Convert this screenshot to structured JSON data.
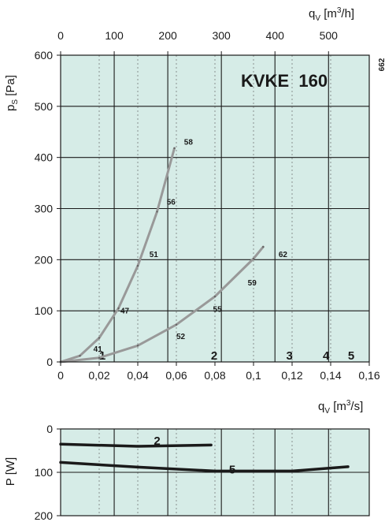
{
  "chart_data": [
    {
      "type": "line",
      "title": "KVKE  160",
      "side_label": "662",
      "ylabel_main": "p",
      "ylabel_sub": "S",
      "ylabel_unit": "[Pa]",
      "xlabel_main": "q",
      "xlabel_sub": "V",
      "xlabel_unit_pre": "[m",
      "xlabel_unit_sup": "3",
      "xlabel_unit_post": "/s]",
      "top_xlabel_main": "q",
      "top_xlabel_sub": "V",
      "top_xlabel_unit_pre": "[m",
      "top_xlabel_unit_sup": "3",
      "top_xlabel_unit_post": "/h]",
      "xlim": [
        0,
        0.16
      ],
      "ylim": [
        0,
        600
      ],
      "x_ticks": [
        0,
        0.02,
        0.04,
        0.06,
        0.08,
        0.1,
        0.12,
        0.14,
        0.16
      ],
      "x_tick_labels": [
        "0",
        "0,02",
        "0,04",
        "0,06",
        "0,08",
        "0,1",
        "0,12",
        "0,14",
        "0,16"
      ],
      "y_ticks": [
        0,
        100,
        200,
        300,
        400,
        500,
        600
      ],
      "y_tick_labels": [
        "0",
        "100",
        "200",
        "300",
        "400",
        "500",
        "600"
      ],
      "top_x_ticks_m3h": [
        0,
        100,
        200,
        300,
        400,
        500
      ],
      "top_x_tick_labels": [
        "0",
        "100",
        "200",
        "300",
        "400",
        "500"
      ],
      "speed_lines": [
        {
          "label": "1",
          "x": 0.02
        },
        {
          "label": "2",
          "x": 0.078
        },
        {
          "label": "3",
          "x": 0.117
        },
        {
          "label": "4",
          "x": 0.136
        },
        {
          "label": "5",
          "x": 0.149
        }
      ],
      "series": [
        {
          "color": "#999999",
          "points": [
            [
              0,
              0
            ],
            [
              0.01,
              12
            ],
            [
              0.02,
              47
            ],
            [
              0.03,
              105
            ],
            [
              0.04,
              188
            ],
            [
              0.05,
              294
            ],
            [
              0.059,
              418
            ]
          ]
        },
        {
          "color": "#999999",
          "points": [
            [
              0,
              0
            ],
            [
              0.02,
              8
            ],
            [
              0.04,
              32
            ],
            [
              0.06,
              73
            ],
            [
              0.08,
              128
            ],
            [
              0.1,
              202
            ],
            [
              0.105,
              225
            ]
          ]
        }
      ],
      "sound_labels": [
        {
          "text": "41",
          "x": 0.017,
          "y": 20
        },
        {
          "text": "47",
          "x": 0.031,
          "y": 95
        },
        {
          "text": "51",
          "x": 0.046,
          "y": 205
        },
        {
          "text": "56",
          "x": 0.055,
          "y": 308
        },
        {
          "text": "58",
          "x": 0.064,
          "y": 425
        },
        {
          "text": "52",
          "x": 0.06,
          "y": 45
        },
        {
          "text": "55",
          "x": 0.079,
          "y": 98
        },
        {
          "text": "59",
          "x": 0.097,
          "y": 150
        },
        {
          "text": "62",
          "x": 0.113,
          "y": 205
        }
      ],
      "grid": true
    },
    {
      "type": "line",
      "ylabel_main": "P",
      "ylabel_unit": "[W]",
      "xlim": [
        0,
        0.16
      ],
      "ylim": [
        0,
        200
      ],
      "y_inverted": true,
      "y_ticks": [
        0,
        100,
        200
      ],
      "y_tick_labels": [
        "0",
        "100",
        "200"
      ],
      "series": [
        {
          "name": "2",
          "color": "#1a1a1a",
          "points": [
            [
              0,
              35
            ],
            [
              0.04,
              40
            ],
            [
              0.078,
              37
            ]
          ]
        },
        {
          "name": "5",
          "color": "#1a1a1a",
          "points": [
            [
              0,
              77
            ],
            [
              0.04,
              88
            ],
            [
              0.08,
              97
            ],
            [
              0.12,
              97
            ],
            [
              0.149,
              87
            ]
          ]
        }
      ],
      "series_label_pos": [
        {
          "text": "2",
          "x": 0.05,
          "y": 25
        },
        {
          "text": "5",
          "x": 0.089,
          "y": 92
        }
      ],
      "grid": true
    }
  ]
}
